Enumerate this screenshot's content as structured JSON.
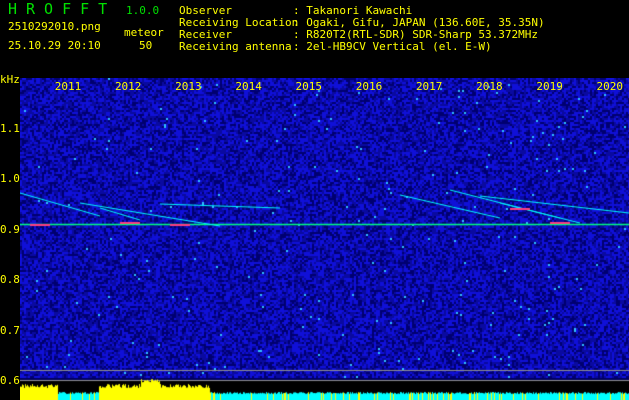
{
  "header": {
    "app_title": "HROFFT",
    "version": "1.0.0",
    "filename": "2510292010.png",
    "datetime": "25.10.29 20:10",
    "meteor_label": "meteor",
    "meteor_count": "50",
    "info": [
      {
        "label": "Observer",
        "value": ": Takanori Kawachi"
      },
      {
        "label": "Receiving Location",
        "value": ": Ogaki, Gifu, JAPAN (136.60E, 35.35N)"
      },
      {
        "label": "Receiver",
        "value": ": R820T2(RTL-SDR) SDR-Sharp 53.372MHz"
      },
      {
        "label": "Receiving antenna",
        "value": ": 2el-HB9CV Vertical (el. E-W)"
      }
    ]
  },
  "chart_data": {
    "type": "heatmap",
    "ylabel": "kHz",
    "y_ticks": [
      "1.1",
      "1.0",
      "0.9",
      "0.8",
      "0.7",
      "0.6"
    ],
    "x_ticks": [
      "2011",
      "2012",
      "2013",
      "2014",
      "2015",
      "2016",
      "2017",
      "2018",
      "2019",
      "2020"
    ],
    "ylim": [
      0.58,
      1.2
    ],
    "carrier_khz": 0.91,
    "colors": {
      "background": "#000088",
      "noise": "#0000ff",
      "trace": "#00ffff",
      "carrier": "#00ff80",
      "level_bar": "#ffff00",
      "level_low": "#00ffff"
    }
  }
}
